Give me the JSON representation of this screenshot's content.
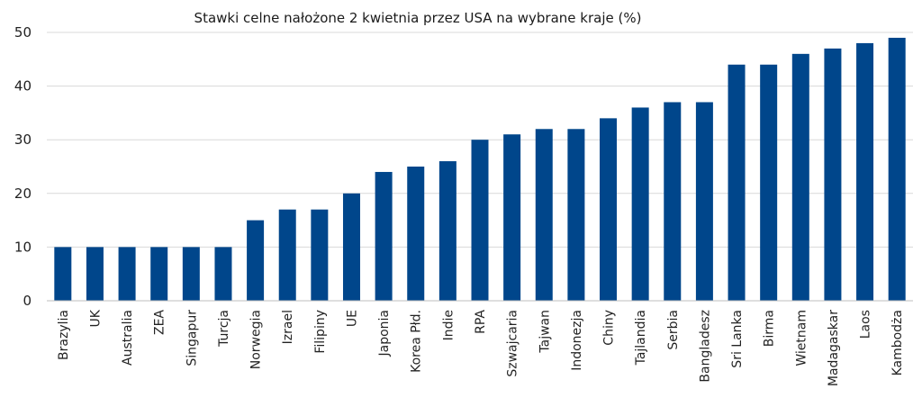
{
  "chart_data": {
    "type": "bar",
    "title": "Stawki celne nałożone 2 kwietnia przez USA na wybrane kraje (%)",
    "xlabel": "",
    "ylabel": "",
    "ylim": [
      0,
      50
    ],
    "yticks": [
      0,
      10,
      20,
      30,
      40,
      50
    ],
    "grid": true,
    "bar_color": "#00468b",
    "categories": [
      "Brazylia",
      "UK",
      "Australia",
      "ZEA",
      "Singapur",
      "Turcja",
      "Norwegia",
      "Izrael",
      "Filipiny",
      "UE",
      "Japonia",
      "Korea Płd.",
      "Indie",
      "RPA",
      "Szwajcaria",
      "Tajwan",
      "Indonezja",
      "Chiny",
      "Tajlandia",
      "Serbia",
      "Bangladesz",
      "Sri Lanka",
      "Birma",
      "Wietnam",
      "Madagaskar",
      "Laos",
      "Kambodża"
    ],
    "values": [
      10,
      10,
      10,
      10,
      10,
      10,
      15,
      17,
      17,
      20,
      24,
      25,
      26,
      30,
      31,
      32,
      32,
      34,
      36,
      37,
      37,
      44,
      44,
      46,
      47,
      48,
      49
    ]
  }
}
